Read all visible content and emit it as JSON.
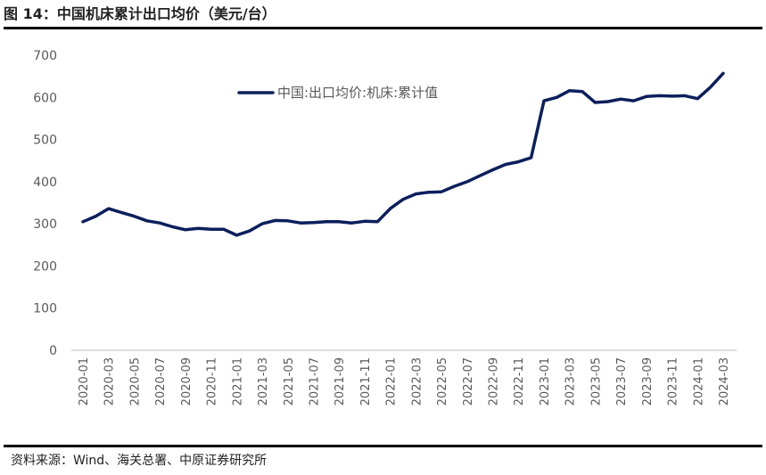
{
  "figure": {
    "title": "图 14：中国机床累计出口均价（美元/台）",
    "source": "资料来源：Wind、海关总署、中原证券研究所"
  },
  "colors": {
    "series": "#0b1f5c",
    "axis": "#bfbfbf",
    "text": "#595959",
    "rule": "#000000"
  },
  "chart_data": {
    "type": "line",
    "title": "",
    "xlabel": "",
    "ylabel": "",
    "ylim": [
      0,
      700
    ],
    "yticks": [
      0,
      100,
      200,
      300,
      400,
      500,
      600,
      700
    ],
    "grid": false,
    "legend_position": "top-center",
    "x": [
      "2020-01",
      "2020-02",
      "2020-03",
      "2020-04",
      "2020-05",
      "2020-06",
      "2020-07",
      "2020-08",
      "2020-09",
      "2020-10",
      "2020-11",
      "2020-12",
      "2021-01",
      "2021-02",
      "2021-03",
      "2021-04",
      "2021-05",
      "2021-06",
      "2021-07",
      "2021-08",
      "2021-09",
      "2021-10",
      "2021-11",
      "2021-12",
      "2022-01",
      "2022-02",
      "2022-03",
      "2022-04",
      "2022-05",
      "2022-06",
      "2022-07",
      "2022-08",
      "2022-09",
      "2022-10",
      "2022-11",
      "2022-12",
      "2023-01",
      "2023-02",
      "2023-03",
      "2023-04",
      "2023-05",
      "2023-06",
      "2023-07",
      "2023-08",
      "2023-09",
      "2023-10",
      "2023-11",
      "2023-12",
      "2024-01",
      "2024-02",
      "2024-03"
    ],
    "xticklabels": [
      "2020-01",
      "2020-03",
      "2020-05",
      "2020-07",
      "2020-09",
      "2020-11",
      "2021-01",
      "2021-03",
      "2021-05",
      "2021-07",
      "2021-09",
      "2021-11",
      "2022-01",
      "2022-03",
      "2022-05",
      "2022-07",
      "2022-09",
      "2022-11",
      "2023-01",
      "2023-03",
      "2023-05",
      "2023-07",
      "2023-09",
      "2023-11",
      "2024-01",
      "2024-03"
    ],
    "series": [
      {
        "name": "中国:出口均价:机床:累计值",
        "values": [
          305,
          318,
          336,
          327,
          318,
          307,
          302,
          293,
          286,
          289,
          287,
          287,
          273,
          283,
          300,
          308,
          307,
          302,
          303,
          305,
          305,
          302,
          306,
          305,
          336,
          358,
          371,
          375,
          376,
          389,
          400,
          414,
          428,
          441,
          447,
          457,
          592,
          600,
          616,
          614,
          588,
          590,
          596,
          592,
          602,
          604,
          603,
          604,
          597,
          624,
          657
        ]
      }
    ]
  }
}
